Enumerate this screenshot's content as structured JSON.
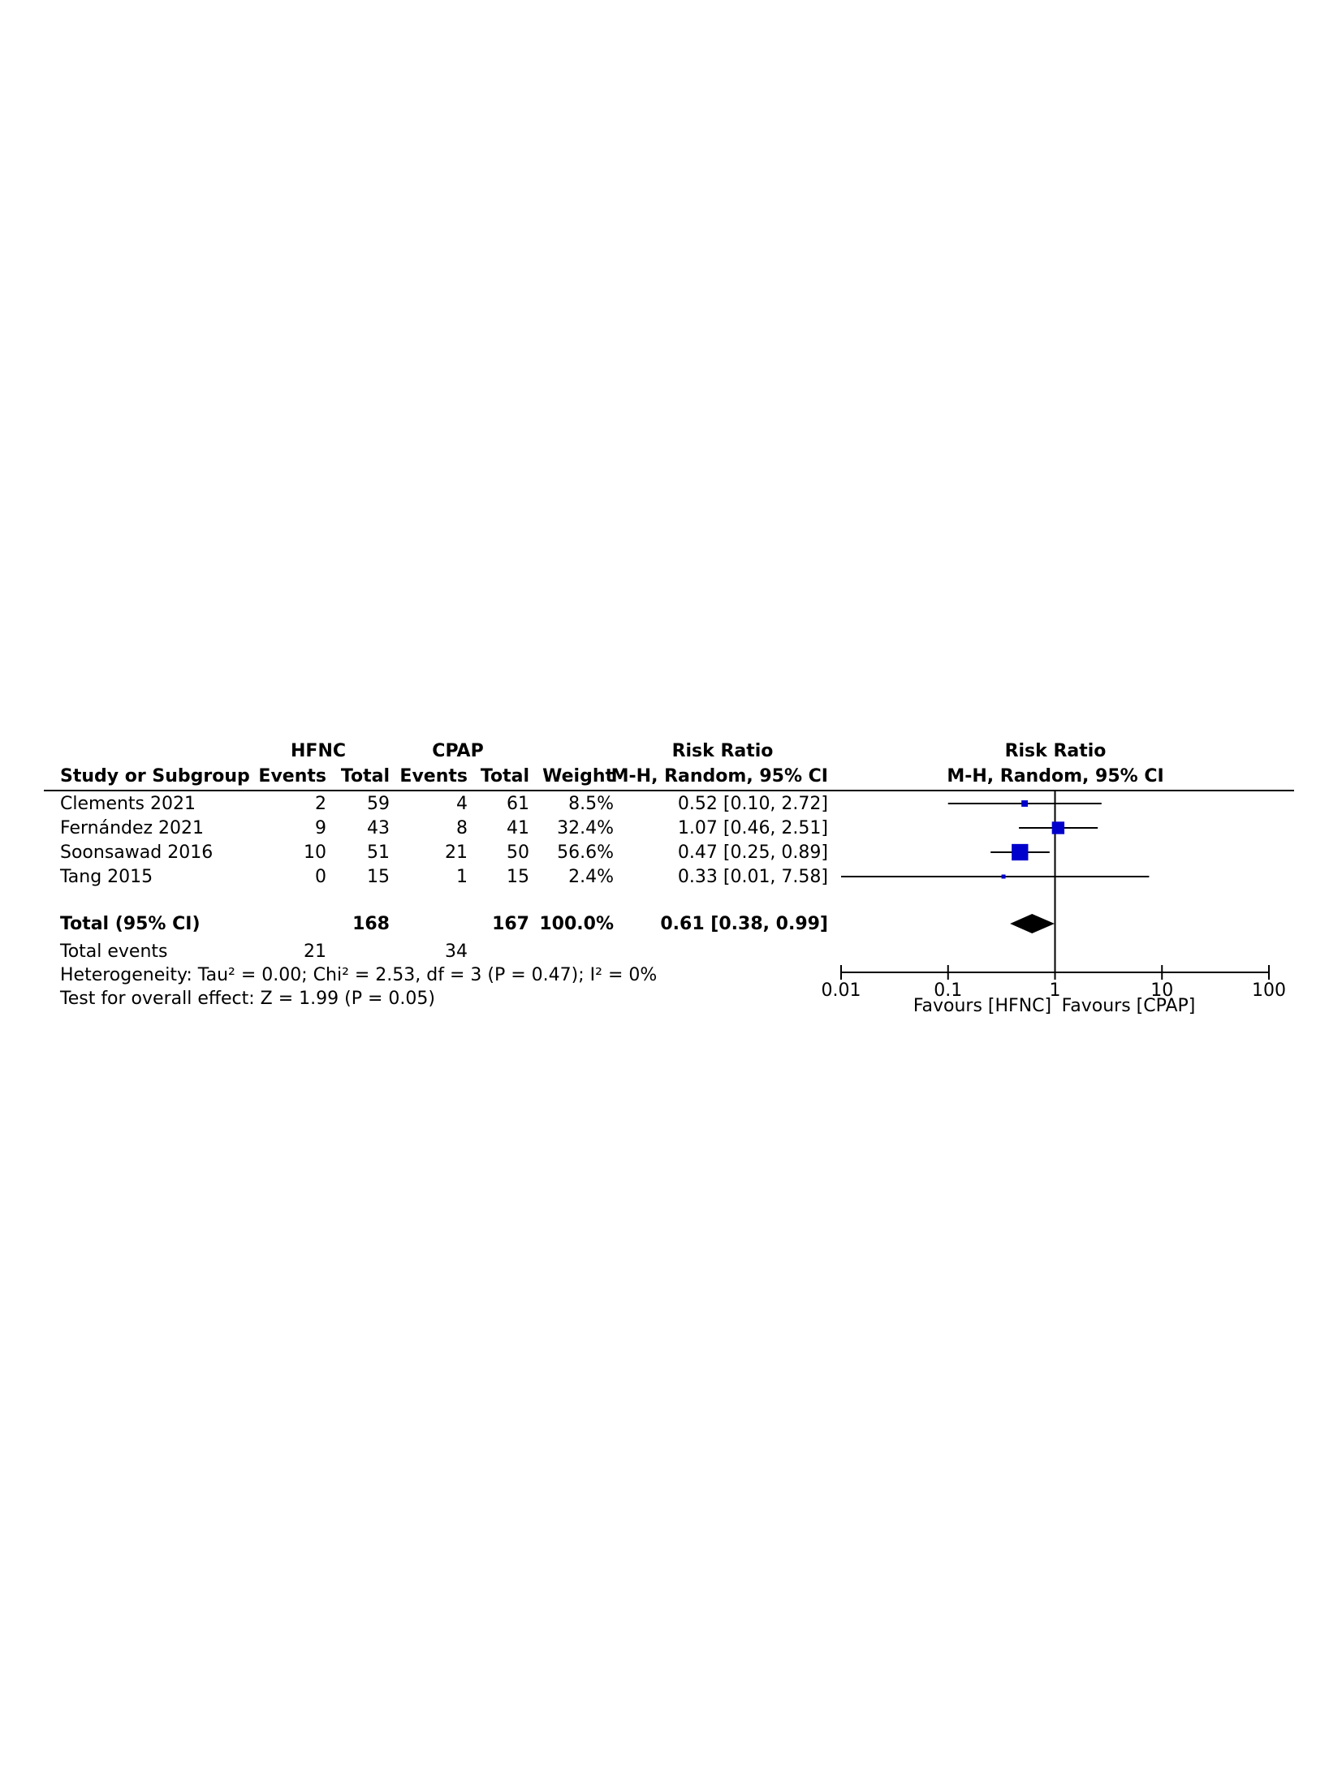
{
  "table": {
    "group1": "HFNC",
    "group2": "CPAP",
    "col_study": "Study or Subgroup",
    "col_events": "Events",
    "col_total": "Total",
    "col_weight": "Weight",
    "col_rr_title": "Risk Ratio",
    "col_rr_method": "M-H, Random, 95% CI",
    "rows": [
      {
        "study": "Clements 2021",
        "e1": "2",
        "t1": "59",
        "e2": "4",
        "t2": "61",
        "weight": "8.5%",
        "rr": "0.52 [0.10, 2.72]"
      },
      {
        "study": "Fernández 2021",
        "e1": "9",
        "t1": "43",
        "e2": "8",
        "t2": "41",
        "weight": "32.4%",
        "rr": "1.07 [0.46, 2.51]"
      },
      {
        "study": "Soonsawad 2016",
        "e1": "10",
        "t1": "51",
        "e2": "21",
        "t2": "50",
        "weight": "56.6%",
        "rr": "0.47 [0.25, 0.89]"
      },
      {
        "study": "Tang 2015",
        "e1": "0",
        "t1": "15",
        "e2": "1",
        "t2": "15",
        "weight": "2.4%",
        "rr": "0.33 [0.01, 7.58]"
      }
    ],
    "total": {
      "label": "Total (95% CI)",
      "t1": "168",
      "t2": "167",
      "weight": "100.0%",
      "rr": "0.61 [0.38, 0.99]"
    },
    "total_events": {
      "label": "Total events",
      "e1": "21",
      "e2": "34"
    },
    "heterogeneity": "Heterogeneity: Tau² = 0.00; Chi² = 2.53, df = 3 (P = 0.47); I² = 0%",
    "overall_effect": "Test for overall effect: Z = 1.99 (P = 0.05)"
  },
  "chart_data": {
    "type": "scatter",
    "title": "Risk Ratio",
    "subtitle": "M-H, Random, 95% CI",
    "x_scale": "log",
    "xlim": [
      0.01,
      100
    ],
    "x_ticks": [
      "0.01",
      "0.1",
      "1",
      "10",
      "100"
    ],
    "x_tick_values": [
      0.01,
      0.1,
      1,
      10,
      100
    ],
    "favours_left": "Favours [HFNC]",
    "favours_right": "Favours [CPAP]",
    "reference_line": 1,
    "studies": [
      {
        "study": "Clements 2021",
        "rr": 0.52,
        "lower": 0.1,
        "upper": 2.72,
        "weight": 8.5
      },
      {
        "study": "Fernández 2021",
        "rr": 1.07,
        "lower": 0.46,
        "upper": 2.51,
        "weight": 32.4
      },
      {
        "study": "Soonsawad 2016",
        "rr": 0.47,
        "lower": 0.25,
        "upper": 0.89,
        "weight": 56.6
      },
      {
        "study": "Tang 2015",
        "rr": 0.33,
        "lower": 0.01,
        "upper": 7.58,
        "weight": 2.4
      }
    ],
    "pooled": {
      "rr": 0.61,
      "lower": 0.38,
      "upper": 0.99
    },
    "colors": {
      "marker": "#0000cc",
      "diamond": "#000000",
      "lines": "#000000"
    }
  }
}
